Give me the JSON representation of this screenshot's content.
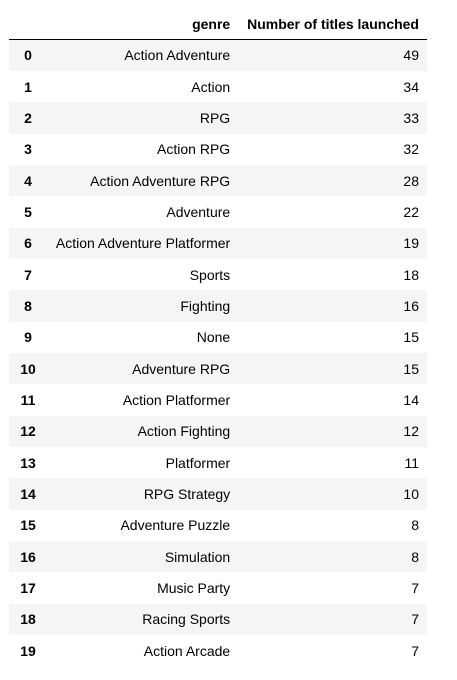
{
  "table": {
    "index_header": "",
    "columns": [
      "genre",
      "Number of titles launched"
    ],
    "rows": [
      {
        "index": "0",
        "genre": "Action Adventure",
        "count": "49"
      },
      {
        "index": "1",
        "genre": "Action",
        "count": "34"
      },
      {
        "index": "2",
        "genre": "RPG",
        "count": "33"
      },
      {
        "index": "3",
        "genre": "Action RPG",
        "count": "32"
      },
      {
        "index": "4",
        "genre": "Action Adventure RPG",
        "count": "28"
      },
      {
        "index": "5",
        "genre": "Adventure",
        "count": "22"
      },
      {
        "index": "6",
        "genre": "Action Adventure Platformer",
        "count": "19"
      },
      {
        "index": "7",
        "genre": "Sports",
        "count": "18"
      },
      {
        "index": "8",
        "genre": "Fighting",
        "count": "16"
      },
      {
        "index": "9",
        "genre": "None",
        "count": "15"
      },
      {
        "index": "10",
        "genre": "Adventure RPG",
        "count": "15"
      },
      {
        "index": "11",
        "genre": "Action Platformer",
        "count": "14"
      },
      {
        "index": "12",
        "genre": "Action Fighting",
        "count": "12"
      },
      {
        "index": "13",
        "genre": "Platformer",
        "count": "11"
      },
      {
        "index": "14",
        "genre": "RPG Strategy",
        "count": "10"
      },
      {
        "index": "15",
        "genre": "Adventure Puzzle",
        "count": "8"
      },
      {
        "index": "16",
        "genre": "Simulation",
        "count": "8"
      },
      {
        "index": "17",
        "genre": "Music Party",
        "count": "7"
      },
      {
        "index": "18",
        "genre": "Racing Sports",
        "count": "7"
      },
      {
        "index": "19",
        "genre": "Action Arcade",
        "count": "7"
      }
    ]
  },
  "colors": {
    "stripe": "#f5f5f5",
    "background": "#ffffff",
    "header_rule": "#000000"
  }
}
